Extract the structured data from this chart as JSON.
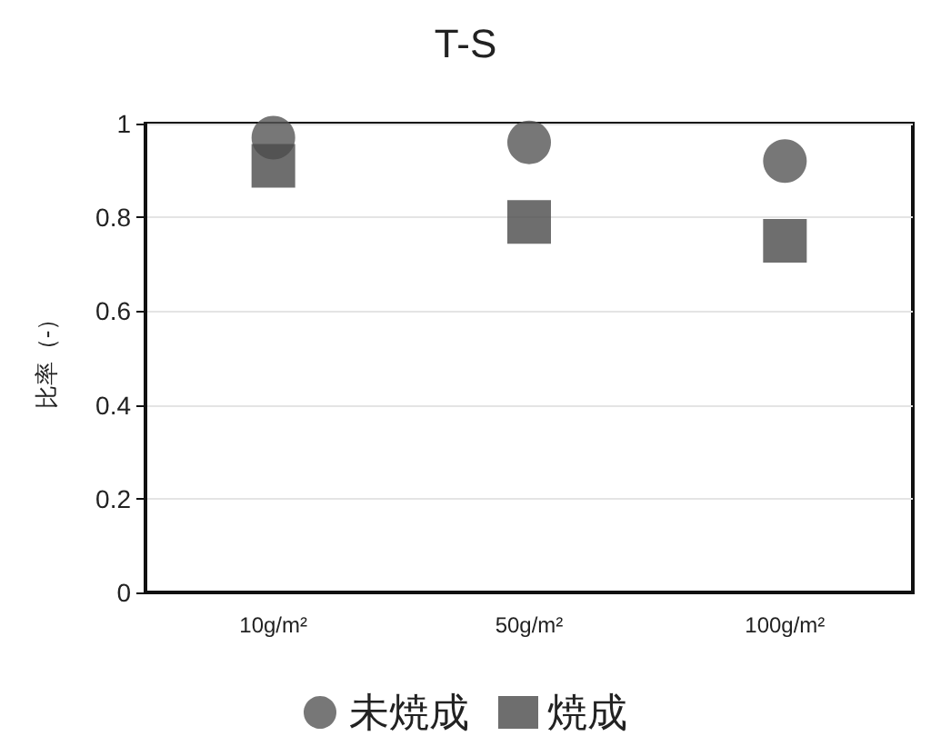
{
  "chart_data": {
    "type": "scatter",
    "title": "T-S",
    "ylabel": "比率（-）",
    "categories": [
      "10g/m²",
      "50g/m²",
      "100g/m²"
    ],
    "series": [
      {
        "name": "未焼成",
        "color": "#555555",
        "marker": "circle",
        "values": [
          0.97,
          0.96,
          0.92
        ]
      },
      {
        "name": "焼成",
        "color": "#4a4a4a",
        "marker": "square",
        "values": [
          0.91,
          0.79,
          0.75
        ]
      }
    ],
    "ylim": [
      0,
      1
    ],
    "yticks": [
      0,
      0.2,
      0.4,
      0.6,
      0.8,
      1
    ],
    "grid": "y",
    "legend": "bottom"
  }
}
